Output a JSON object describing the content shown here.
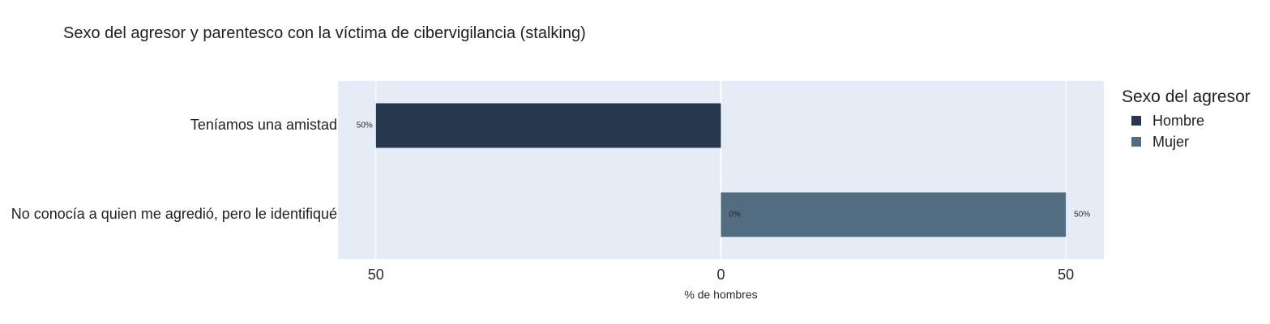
{
  "chart_data": {
    "type": "bar",
    "orientation": "horizontal",
    "title": "Sexo del agresor y parentesco con la víctima de cibervigilancia (stalking)",
    "xlabel": "% de hombres",
    "ylabel": "",
    "categories": [
      "Teníamos una amistad",
      "No conocía a quien me agredió, pero le identifiqué"
    ],
    "series": [
      {
        "name": "Hombre",
        "color": "#27374d",
        "values": [
          -50,
          0
        ],
        "labels": [
          "50%",
          "0%"
        ]
      },
      {
        "name": "Mujer",
        "color": "#526d82",
        "values": [
          0,
          50
        ],
        "labels": [
          "",
          "50%"
        ]
      }
    ],
    "xlim": [
      -55.5,
      55.5
    ],
    "xticks": [
      {
        "value": -50,
        "label": "50"
      },
      {
        "value": 0,
        "label": "0"
      },
      {
        "value": 50,
        "label": "50"
      }
    ],
    "grid": true,
    "plot_background": "#e5ecf6",
    "legend": {
      "title": "Sexo del agresor",
      "placement": "right"
    }
  }
}
